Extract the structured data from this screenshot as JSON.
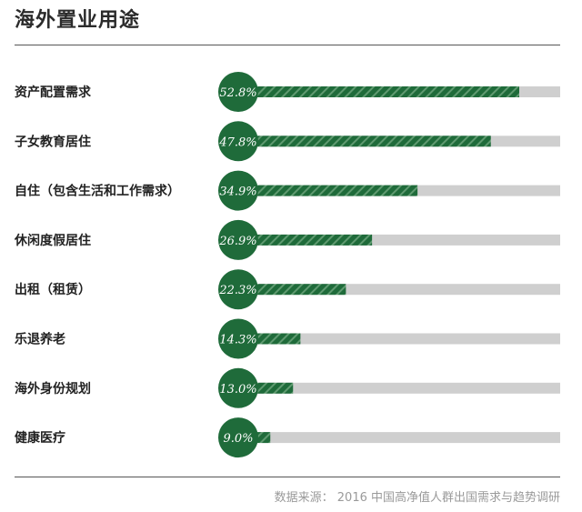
{
  "source": "数据来源： 2016 中国高净值人群出国需求与趋势调研",
  "colors": {
    "bar": "#1f6b3a",
    "track": "#cfcfcf",
    "circle": "#1f6b3a"
  },
  "chart_data": {
    "type": "bar",
    "orientation": "horizontal",
    "title": "海外置业用途",
    "categories": [
      "资产配置需求",
      "子女教育居住",
      "自住（包含生活和工作需求）",
      "休闲度假居住",
      "出租（租赁）",
      "乐退养老",
      "海外身份规划",
      "健康医疗"
    ],
    "values": [
      52.8,
      47.8,
      34.9,
      26.9,
      22.3,
      14.3,
      13.0,
      9.0
    ],
    "value_labels": [
      "52.8%",
      "47.8%",
      "34.9%",
      "26.9%",
      "22.3%",
      "14.3%",
      "13.0%",
      "9.0%"
    ],
    "unit": "%",
    "xlim": [
      0,
      60
    ],
    "grid": false,
    "legend": "none"
  }
}
